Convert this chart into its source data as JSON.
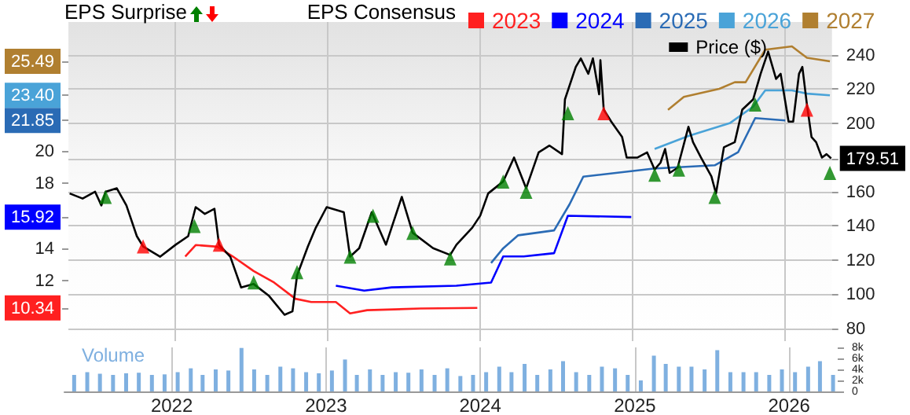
{
  "chart_data": {
    "type": "line",
    "annotations": [
      "EPS Surprise"
    ],
    "legend_title": "EPS Consensus",
    "legend": "top right",
    "grid": true,
    "xlim": [
      "2021-04-22",
      "2026-04-26"
    ],
    "xticks": [
      "2022",
      "2023",
      "2024",
      "2025",
      "2026"
    ],
    "ylim": [
      8.3,
      27.9
    ],
    "yticks": [
      {
        "value": 10.34,
        "label": "10.34"
      },
      12,
      14,
      {
        "value": 15.92,
        "label": "15.92"
      },
      18,
      20,
      {
        "value": 21.85,
        "label": "21.85"
      },
      {
        "value": 23.4,
        "label": "23.40"
      },
      {
        "value": 25.49,
        "label": "25.49"
      }
    ],
    "y2lim": [
      72.6,
      259.3
    ],
    "y2ticks": [
      80,
      100,
      120,
      140,
      160,
      {
        "value": 179.51,
        "label": "179.51"
      },
      200,
      220,
      240
    ],
    "y3lim": [
      0,
      8000
    ],
    "y3ticks": [
      0,
      {
        "value": 2000,
        "label": "2k"
      },
      {
        "value": 4000,
        "label": "4k"
      },
      {
        "value": 6000,
        "label": "6k"
      },
      {
        "value": 8000,
        "label": "8k"
      }
    ],
    "series": [
      {
        "name": "2023",
        "color": "#ff2020",
        "x": [
          "2022-01-27",
          "2022-02-21",
          "2022-04-14",
          "2022-05-21",
          "2022-07-10",
          "2022-08-28",
          "2022-10-18",
          "2022-11-25",
          "2023-01-23",
          "2023-02-26",
          "2023-04-08",
          "2023-08-14",
          "2023-12-28"
        ],
        "values": [
          13.5,
          14.2,
          14.1,
          13.5,
          12.6,
          11.9,
          10.9,
          10.7,
          10.7,
          10.0,
          10.2,
          10.3,
          10.34
        ]
      },
      {
        "name": "2024",
        "color": "#0000ff",
        "x": [
          "2023-01-23",
          "2023-04-01",
          "2023-06-06",
          "2023-11-08",
          "2024-01-30",
          "2024-02-28",
          "2024-04-17",
          "2024-06-29",
          "2024-08-01",
          "2024-12-31"
        ],
        "values": [
          11.7,
          11.4,
          11.6,
          11.7,
          11.9,
          13.5,
          13.5,
          13.7,
          16.0,
          15.92
        ]
      },
      {
        "name": "2025",
        "color": "#2a6bb5",
        "x": [
          "2024-01-30",
          "2024-02-28",
          "2024-04-04",
          "2024-06-29",
          "2024-08-05",
          "2024-09-07",
          "2025-02-22",
          "2025-07-19",
          "2025-09-13",
          "2025-10-24",
          "2026-01-04"
        ],
        "values": [
          13.1,
          14.0,
          14.8,
          15.1,
          16.7,
          18.4,
          18.9,
          19.1,
          19.9,
          22.0,
          21.85
        ]
      },
      {
        "name": "2026",
        "color": "#4aa3d8",
        "x": [
          "2025-02-25",
          "2025-05-17",
          "2025-08-25",
          "2025-10-19",
          "2025-11-17",
          "2026-01-20",
          "2026-02-25",
          "2026-04-21"
        ],
        "values": [
          20.1,
          20.9,
          21.7,
          22.7,
          23.7,
          23.7,
          23.5,
          23.4
        ]
      },
      {
        "name": "2027",
        "color": "#b07f30",
        "x": [
          "2025-03-29",
          "2025-05-06",
          "2025-07-30",
          "2025-09-05",
          "2025-10-01",
          "2025-11-17",
          "2026-01-20",
          "2026-02-25",
          "2026-04-21"
        ],
        "values": [
          22.5,
          23.3,
          23.8,
          24.2,
          24.2,
          26.2,
          26.4,
          25.7,
          25.49
        ]
      },
      {
        "name": "Price ($)",
        "color": "#000000",
        "axis": "y2",
        "x": [
          "2021-04-25",
          "2021-05-26",
          "2021-06-25",
          "2021-07-10",
          "2021-07-20",
          "2021-08-16",
          "2021-09-08",
          "2021-10-03",
          "2021-10-18",
          "2021-11-28",
          "2022-01-04",
          "2022-02-03",
          "2022-02-21",
          "2022-03-15",
          "2022-04-07",
          "2022-04-18",
          "2022-05-15",
          "2022-06-10",
          "2022-07-10",
          "2022-08-16",
          "2022-09-22",
          "2022-10-11",
          "2022-10-22",
          "2022-11-17",
          "2022-12-06",
          "2023-01-01",
          "2023-02-11",
          "2023-02-26",
          "2023-03-20",
          "2023-04-19",
          "2023-05-23",
          "2023-06-30",
          "2023-07-26",
          "2023-09-13",
          "2023-10-24",
          "2023-11-08",
          "2023-12-16",
          "2024-01-04",
          "2024-01-23",
          "2024-02-28",
          "2024-03-25",
          "2024-04-23",
          "2024-05-23",
          "2024-06-18",
          "2024-07-18",
          "2024-07-25",
          "2024-08-20",
          "2024-09-01",
          "2024-09-19",
          "2024-09-30",
          "2024-10-15",
          "2024-10-18",
          "2024-10-26",
          "2024-11-13",
          "2024-12-09",
          "2024-12-20",
          "2025-01-15",
          "2025-02-07",
          "2025-02-25",
          "2025-03-11",
          "2025-03-22",
          "2025-04-02",
          "2025-04-21",
          "2025-05-17",
          "2025-05-28",
          "2025-06-16",
          "2025-07-11",
          "2025-07-22",
          "2025-08-10",
          "2025-09-05",
          "2025-09-23",
          "2025-10-19",
          "2025-11-06",
          "2025-11-24",
          "2025-12-13",
          "2025-12-24",
          "2026-01-12",
          "2026-01-23",
          "2026-02-06",
          "2026-02-14",
          "2026-02-25",
          "2026-03-08",
          "2026-03-19",
          "2026-04-02",
          "2026-04-13",
          "2026-04-24"
        ],
        "values": [
          159,
          156,
          160,
          152,
          160,
          162,
          152,
          134,
          128,
          122,
          129,
          134,
          151,
          147,
          150,
          129,
          122,
          104,
          106,
          99,
          88,
          90,
          111,
          128,
          139,
          151,
          148,
          122,
          127,
          148,
          129,
          157,
          136,
          127,
          123,
          129,
          139,
          146,
          159,
          166,
          180,
          162,
          183,
          187,
          182,
          214,
          233,
          238,
          229,
          238,
          217,
          237,
          208,
          201,
          192,
          180,
          180,
          183,
          173,
          177,
          185,
          171,
          174,
          198,
          189,
          180,
          169,
          159,
          186,
          189,
          208,
          214,
          229,
          242,
          226,
          229,
          201,
          201,
          229,
          233,
          211,
          192,
          189,
          180,
          182,
          179.51
        ]
      },
      {
        "type": "scatter",
        "color": "#008000",
        "axis": "y2",
        "marker": "triangle",
        "x": [
          "2021-07-20",
          "2022-02-18",
          "2022-07-10",
          "2022-10-22",
          "2023-02-26",
          "2023-04-22",
          "2023-07-26",
          "2023-10-24",
          "2024-02-28",
          "2024-04-23",
          "2024-08-01",
          "2025-02-25",
          "2025-04-24",
          "2025-07-19",
          "2025-10-24",
          "2026-04-21"
        ],
        "values": [
          157,
          140,
          107,
          113,
          122,
          146,
          136,
          121,
          166,
          160,
          206,
          170,
          173,
          157,
          211,
          171
        ]
      },
      {
        "type": "scatter",
        "color": "#ff0000",
        "axis": "y2",
        "marker": "triangle",
        "x": [
          "2021-10-18",
          "2022-04-18",
          "2024-10-26",
          "2026-02-25"
        ],
        "values": [
          128,
          129,
          206,
          208
        ]
      },
      {
        "type": "bar",
        "name": "Volume",
        "color": "#7fb0e0",
        "axis": "y3",
        "x": [
          "2021-05-15",
          "2021-06-15",
          "2021-07-15",
          "2021-08-15",
          "2021-09-15",
          "2021-10-15",
          "2021-11-15",
          "2021-12-15",
          "2022-01-15",
          "2022-02-15",
          "2022-03-15",
          "2022-04-15",
          "2022-05-15",
          "2022-06-15",
          "2022-07-15",
          "2022-08-15",
          "2022-09-15",
          "2022-10-15",
          "2022-11-15",
          "2022-12-15",
          "2023-01-15",
          "2023-02-15",
          "2023-03-15",
          "2023-04-15",
          "2023-05-15",
          "2023-06-15",
          "2023-07-15",
          "2023-08-15",
          "2023-09-15",
          "2023-10-15",
          "2023-11-15",
          "2023-12-15",
          "2024-01-15",
          "2024-02-15",
          "2024-03-15",
          "2024-04-15",
          "2024-05-15",
          "2024-06-15",
          "2024-07-15",
          "2024-08-15",
          "2024-09-15",
          "2024-10-15",
          "2024-11-15",
          "2024-12-15",
          "2025-01-15",
          "2025-02-15",
          "2025-03-15",
          "2025-04-15",
          "2025-05-15",
          "2025-06-15",
          "2025-07-15",
          "2025-08-15",
          "2025-09-15",
          "2025-10-15",
          "2025-11-15",
          "2025-12-15",
          "2026-01-15",
          "2026-02-15",
          "2026-03-15",
          "2026-04-15"
        ],
        "values": [
          3000,
          3500,
          3200,
          3000,
          3300,
          3400,
          3000,
          3100,
          3500,
          4200,
          3000,
          4000,
          3800,
          7900,
          4000,
          3000,
          4500,
          4200,
          3500,
          3300,
          3800,
          5800,
          3000,
          4000,
          3000,
          3500,
          3400,
          4000,
          3000,
          4200,
          2800,
          3000,
          3500,
          4500,
          3500,
          5000,
          3000,
          4000,
          5500,
          3500,
          3000,
          4500,
          4200,
          3000,
          2000,
          6500,
          5000,
          4500,
          4500,
          4000,
          7500,
          3500,
          3500,
          3500,
          3000,
          4000,
          3500,
          4500,
          5500,
          3000
        ]
      }
    ]
  }
}
